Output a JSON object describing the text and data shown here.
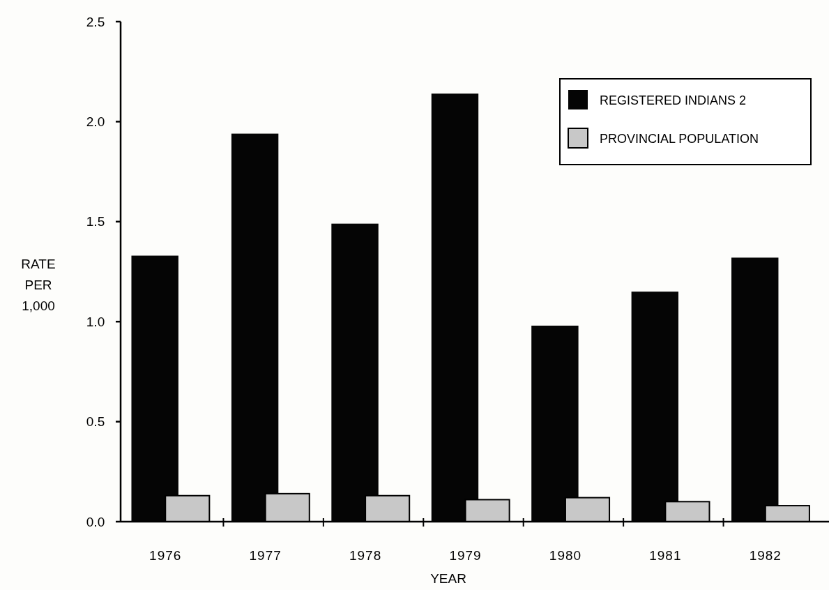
{
  "chart_data": {
    "type": "bar",
    "xlabel": "YEAR",
    "ylabel": "RATE PER 1,000",
    "categories": [
      "1976",
      "1977",
      "1978",
      "1979",
      "1980",
      "1981",
      "1982"
    ],
    "series": [
      {
        "name": "REGISTERED INDIANS 2",
        "color": "#050505",
        "values": [
          1.33,
          1.94,
          1.49,
          2.14,
          0.98,
          1.15,
          1.32
        ]
      },
      {
        "name": "PROVINCIAL POPULATION",
        "color": "#c8c8c8",
        "values": [
          0.13,
          0.14,
          0.13,
          0.11,
          0.12,
          0.1,
          0.08
        ]
      }
    ],
    "ylim": [
      0,
      2.5
    ],
    "yticks": [
      {
        "value": 0,
        "label": "0.0"
      },
      {
        "value": 0.5,
        "label": "0.5"
      },
      {
        "value": 1,
        "label": "1.0"
      },
      {
        "value": 1.5,
        "label": "1.5"
      },
      {
        "value": 2,
        "label": "2.0"
      },
      {
        "value": 2.5,
        "label": "2.5"
      }
    ],
    "legend": "top right",
    "grid": false
  }
}
